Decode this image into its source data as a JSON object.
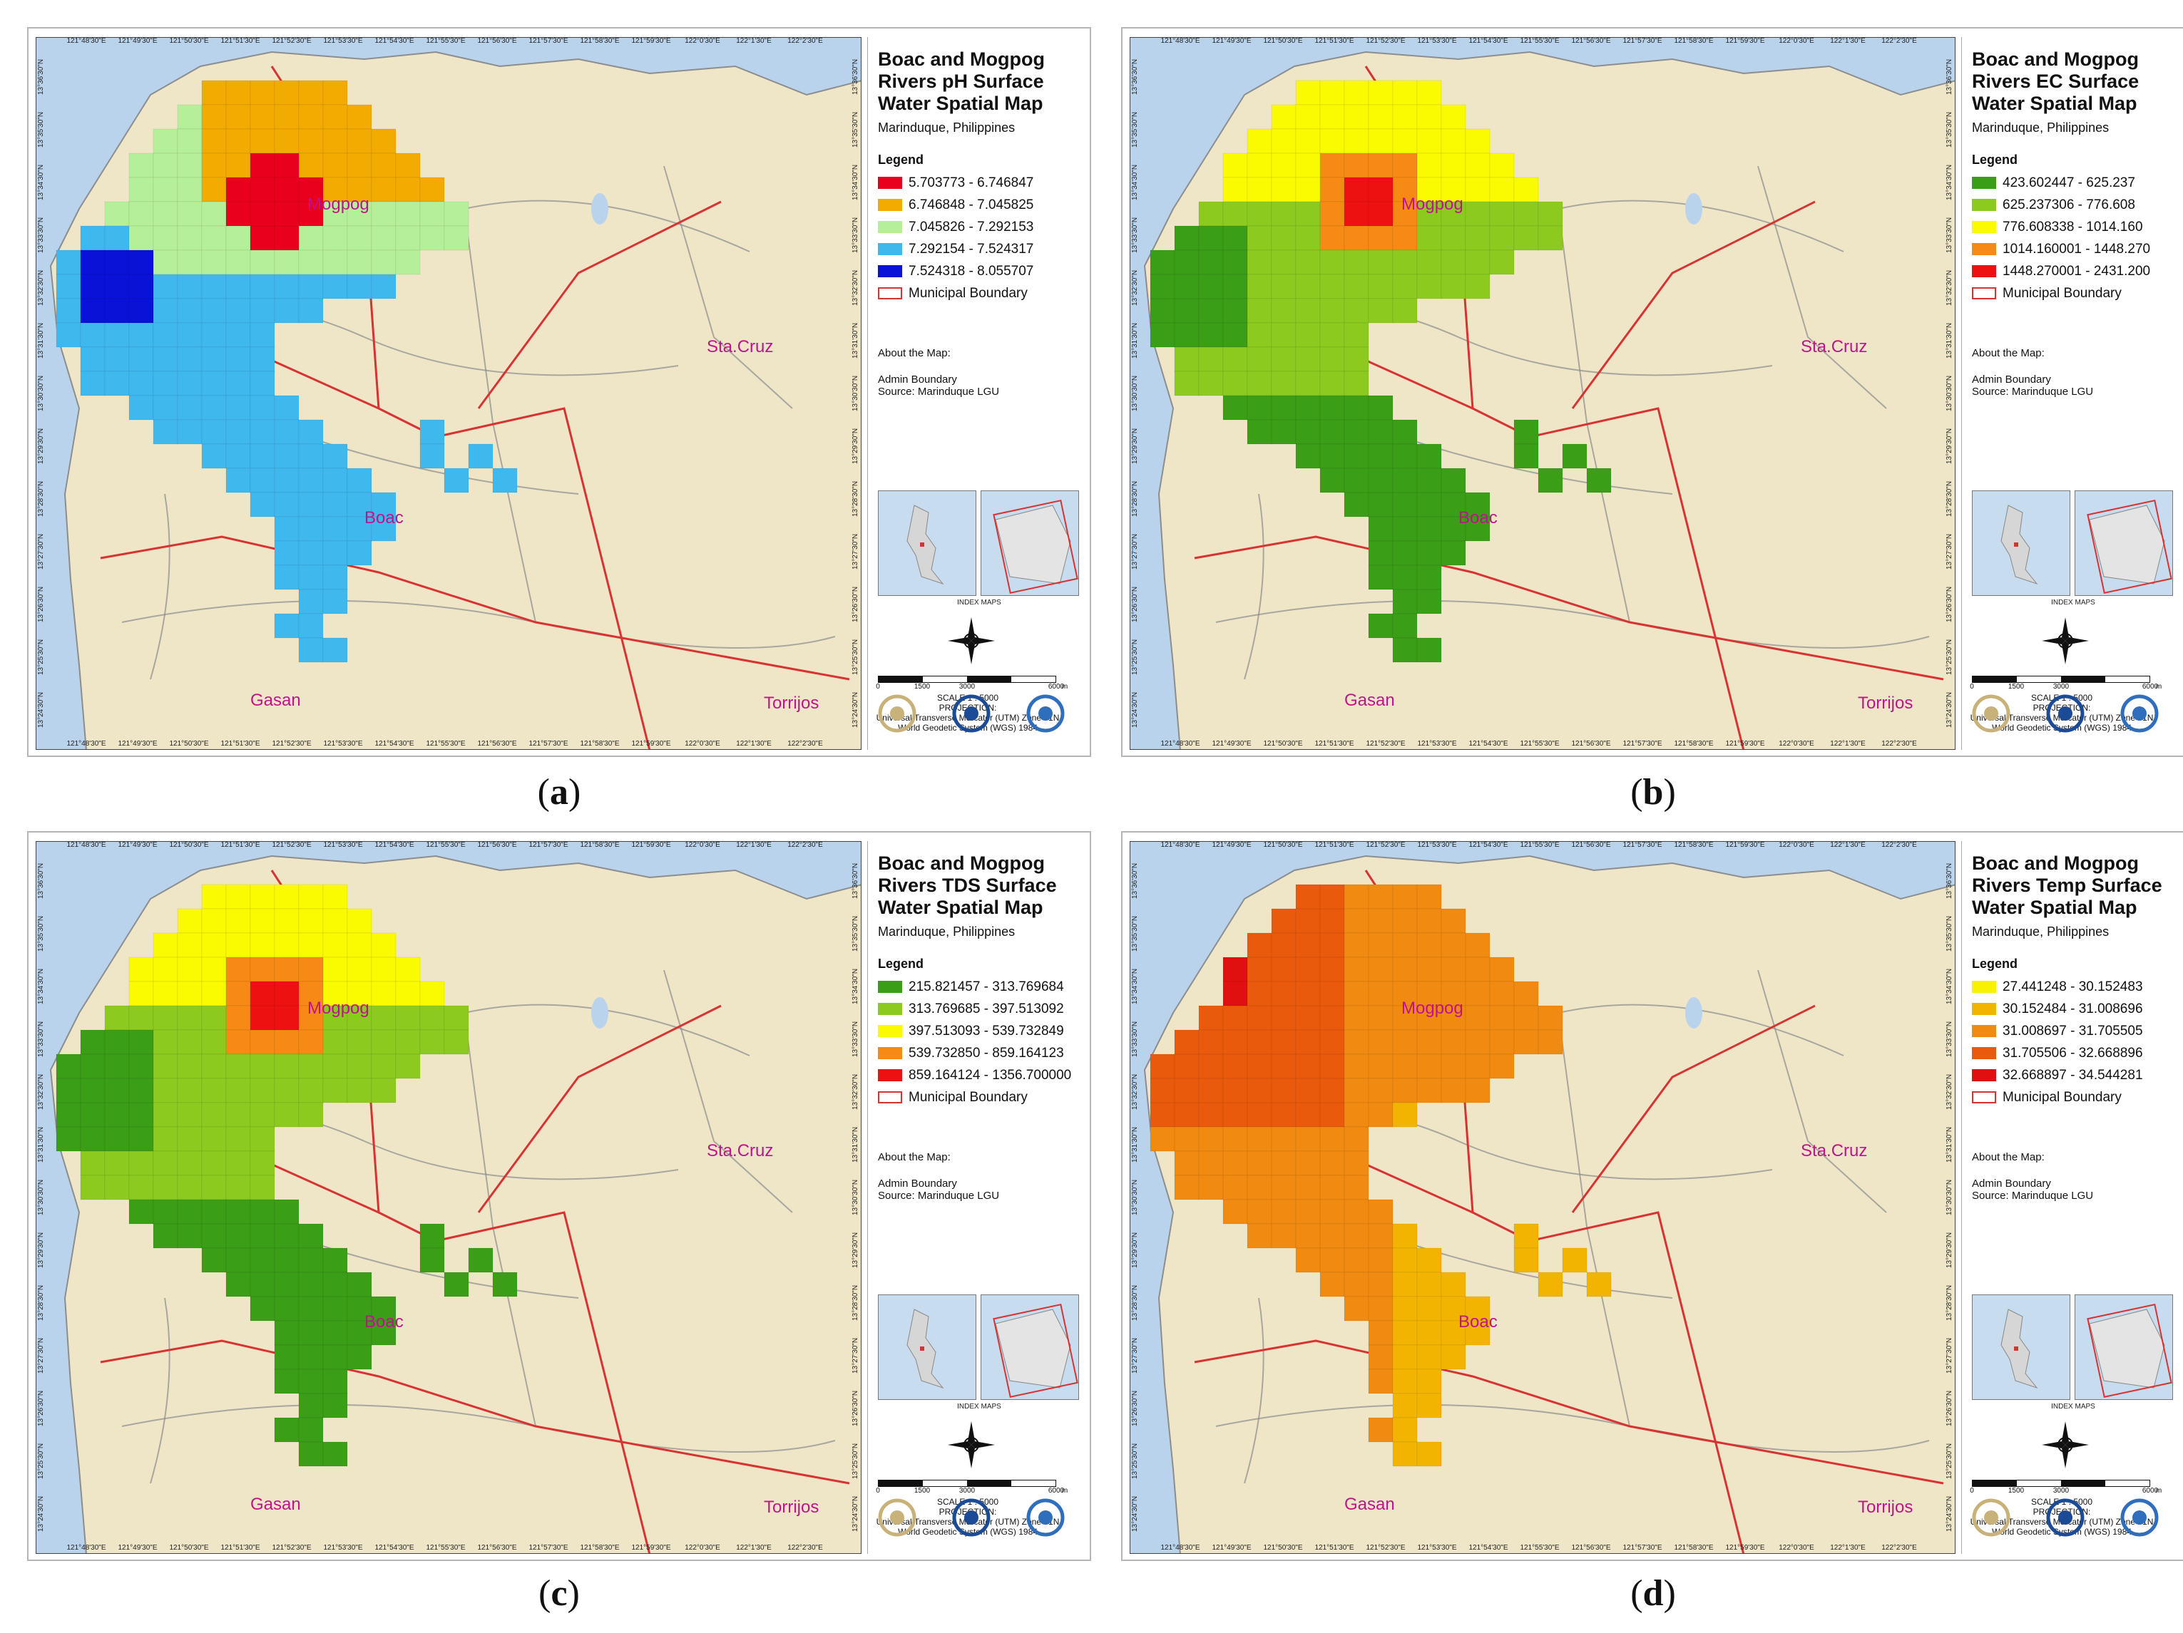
{
  "panels": [
    {
      "caption": "a",
      "title": "Boac and Mogpog Rivers pH Surface Water Spatial Map",
      "subtitle": "Marinduque, Philippines",
      "legend_title": "Legend",
      "legend": [
        {
          "range": "5.703773 - 6.746847",
          "color": "#e8001c"
        },
        {
          "range": "6.746848 - 7.045825",
          "color": "#f2ab00"
        },
        {
          "range": "7.045826 - 7.292153",
          "color": "#b6ef9a"
        },
        {
          "range": "7.292154 - 7.524317",
          "color": "#3fb8ee"
        },
        {
          "range": "7.524318 - 8.055707",
          "color": "#0a12d8"
        }
      ]
    },
    {
      "caption": "b",
      "title": "Boac and Mogpog Rivers EC Surface Water Spatial Map",
      "subtitle": "Marinduque, Philippines",
      "legend_title": "Legend",
      "legend": [
        {
          "range": "423.602447 - 625.237",
          "color": "#3a9e16"
        },
        {
          "range": "625.237306 - 776.608",
          "color": "#8cca1f"
        },
        {
          "range": "776.608338 - 1014.160",
          "color": "#fafa00"
        },
        {
          "range": "1014.160001 - 1448.270",
          "color": "#f68a14"
        },
        {
          "range": "1448.270001 - 2431.200",
          "color": "#ee1111"
        }
      ]
    },
    {
      "caption": "c",
      "title": "Boac and Mogpog Rivers TDS Surface Water Spatial Map",
      "subtitle": "Marinduque, Philippines",
      "legend_title": "Legend",
      "legend": [
        {
          "range": "215.821457 - 313.769684",
          "color": "#3a9e16"
        },
        {
          "range": "313.769685 - 397.513092",
          "color": "#8cca1f"
        },
        {
          "range": "397.513093 - 539.732849",
          "color": "#fafa00"
        },
        {
          "range": "539.732850 - 859.164123",
          "color": "#f68a14"
        },
        {
          "range": "859.164124 - 1356.700000",
          "color": "#ee1111"
        }
      ]
    },
    {
      "caption": "d",
      "title": "Boac and Mogpog Rivers Temp Surface Water Spatial Map",
      "subtitle": "Marinduque, Philippines",
      "legend_title": "Legend",
      "legend": [
        {
          "range": "27.441248 - 30.152483",
          "color": "#f8f200"
        },
        {
          "range": "30.152484 - 31.008696",
          "color": "#f2b400"
        },
        {
          "range": "31.008697 - 31.705505",
          "color": "#f08a10"
        },
        {
          "range": "31.705506 - 32.668896",
          "color": "#ea5a0c"
        },
        {
          "range": "32.668897 - 34.544281",
          "color": "#e01010"
        }
      ]
    }
  ],
  "boundary_label": "Municipal Boundary",
  "about_title": "About the Map:",
  "about_lines": [
    "Admin Boundary",
    "Source: Marinduque LGU"
  ],
  "index_maps_label": "INDEX MAPS",
  "scale_numbers": [
    "0",
    "1500",
    "3000",
    "6000"
  ],
  "scale_unit": "m",
  "scale_text": "SCALE 1 : 5000",
  "projection_label": "PROJECTION:",
  "projection_line1": "Universal Transverse Mercator (UTM) Zone 51N",
  "projection_line2": "World Geodetic System (WGS) 1984",
  "places": {
    "mogpog": "Mogpog",
    "boac": "Boac",
    "gasan": "Gasan",
    "stacruz": "Sta.Cruz",
    "torrijos": "Torrijos"
  },
  "lon_ticks": [
    "121°48'30\"E",
    "121°49'30\"E",
    "121°50'30\"E",
    "121°51'30\"E",
    "121°52'30\"E",
    "121°53'30\"E",
    "121°54'30\"E",
    "121°55'30\"E",
    "121°56'30\"E",
    "121°57'30\"E",
    "121°58'30\"E",
    "121°59'30\"E",
    "122°0'30\"E",
    "122°1'30\"E",
    "122°2'30\"E"
  ],
  "lat_ticks": [
    "13°36'30\"N",
    "13°35'30\"N",
    "13°34'30\"N",
    "13°33'30\"N",
    "13°32'30\"N",
    "13°31'30\"N",
    "13°30'30\"N",
    "13°29'30\"N",
    "13°28'30\"N",
    "13°27'30\"N",
    "13°26'30\"N",
    "13°25'30\"N",
    "13°24'30\"N"
  ],
  "map_colors": {
    "water": "#b9d3ec",
    "land": "#efe6c8",
    "boundary": "#d83232",
    "road": "#8a8a8a"
  }
}
